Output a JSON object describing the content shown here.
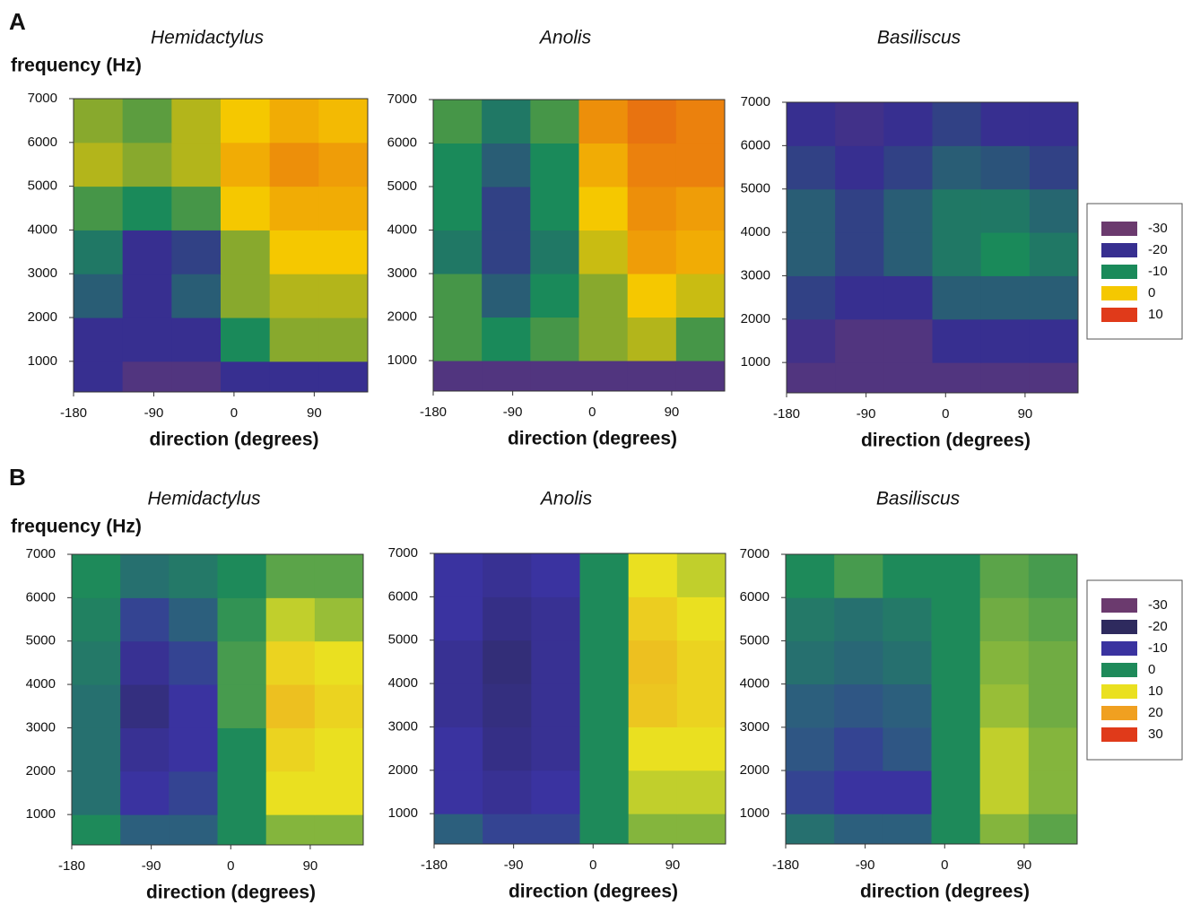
{
  "chart_data": [
    {
      "type": "heatmap",
      "panel_label": "A",
      "title": "Hemidactylus",
      "ylabel": "frequency  (Hz)",
      "xlabel": "direction  (degrees)",
      "xlim": [
        -180,
        150
      ],
      "ylim": [
        300,
        7000
      ],
      "xticks": [
        -180,
        -90,
        0,
        90
      ],
      "yticks": [
        1000,
        2000,
        3000,
        4000,
        5000,
        6000,
        7000
      ],
      "x_bins": [
        -180,
        -125,
        -70,
        -15,
        40,
        95,
        150
      ],
      "y_bins": [
        300,
        1000,
        2000,
        3000,
        4000,
        5000,
        6000,
        7000
      ],
      "values": [
        [
          -20,
          -25,
          -25,
          -20,
          -20,
          -20
        ],
        [
          -20,
          -20,
          -20,
          -10,
          -5,
          -5
        ],
        [
          -15,
          -20,
          -15,
          -5,
          -3,
          -3
        ],
        [
          -12,
          -20,
          -18,
          -5,
          0,
          0
        ],
        [
          -8,
          -10,
          -8,
          0,
          2,
          2
        ],
        [
          -3,
          -5,
          -3,
          2,
          4,
          3
        ],
        [
          -5,
          -7,
          -3,
          0,
          2,
          1
        ]
      ]
    },
    {
      "type": "heatmap",
      "title": "Anolis",
      "xlabel": "direction  (degrees)",
      "xlim": [
        -180,
        150
      ],
      "ylim": [
        300,
        7000
      ],
      "xticks": [
        -180,
        -90,
        0,
        90
      ],
      "yticks": [
        1000,
        2000,
        3000,
        4000,
        5000,
        6000,
        7000
      ],
      "x_bins": [
        -180,
        -125,
        -70,
        -15,
        40,
        95,
        150
      ],
      "y_bins": [
        300,
        1000,
        2000,
        3000,
        4000,
        5000,
        6000,
        7000
      ],
      "values": [
        [
          -25,
          -25,
          -25,
          -25,
          -25,
          -25
        ],
        [
          -8,
          -10,
          -8,
          -5,
          -3,
          -8
        ],
        [
          -8,
          -15,
          -10,
          -5,
          0,
          -2
        ],
        [
          -12,
          -18,
          -12,
          -2,
          3,
          2
        ],
        [
          -10,
          -18,
          -10,
          0,
          4,
          3
        ],
        [
          -10,
          -15,
          -10,
          2,
          5,
          5
        ],
        [
          -8,
          -12,
          -8,
          4,
          6,
          5
        ]
      ]
    },
    {
      "type": "heatmap",
      "title": "Basiliscus",
      "xlabel": "direction  (degrees)",
      "xlim": [
        -180,
        150
      ],
      "ylim": [
        300,
        7000
      ],
      "xticks": [
        -180,
        -90,
        0,
        90
      ],
      "yticks": [
        1000,
        2000,
        3000,
        4000,
        5000,
        6000,
        7000
      ],
      "x_bins": [
        -180,
        -125,
        -70,
        -15,
        40,
        95,
        150
      ],
      "y_bins": [
        300,
        1000,
        2000,
        3000,
        4000,
        5000,
        6000,
        7000
      ],
      "values": [
        [
          -25,
          -25,
          -25,
          -25,
          -25,
          -25
        ],
        [
          -22,
          -25,
          -25,
          -20,
          -20,
          -20
        ],
        [
          -18,
          -20,
          -20,
          -15,
          -15,
          -15
        ],
        [
          -15,
          -18,
          -15,
          -12,
          -10,
          -12
        ],
        [
          -15,
          -18,
          -15,
          -12,
          -12,
          -14
        ],
        [
          -18,
          -20,
          -18,
          -15,
          -16,
          -18
        ],
        [
          -20,
          -22,
          -20,
          -18,
          -20,
          -20
        ]
      ],
      "legend": {
        "levels": [
          -30,
          -20,
          -10,
          0,
          10
        ],
        "colors": [
          "#6b3a6e",
          "#372f90",
          "#1a8a5a",
          "#f5c800",
          "#e03a1a"
        ]
      }
    },
    {
      "type": "heatmap",
      "panel_label": "B",
      "title": "Hemidactylus",
      "ylabel": "frequency  (Hz)",
      "xlabel": "direction  (degrees)",
      "xlim": [
        -180,
        150
      ],
      "ylim": [
        300,
        7000
      ],
      "xticks": [
        -180,
        -90,
        0,
        90
      ],
      "yticks": [
        1000,
        2000,
        3000,
        4000,
        5000,
        6000,
        7000
      ],
      "x_bins": [
        -180,
        -125,
        -70,
        -15,
        40,
        95,
        150
      ],
      "y_bins": [
        300,
        1000,
        2000,
        3000,
        4000,
        5000,
        6000,
        7000
      ],
      "values": [
        [
          0,
          -5,
          -5,
          0,
          5,
          5
        ],
        [
          -3,
          -10,
          -8,
          0,
          10,
          10
        ],
        [
          -3,
          -12,
          -10,
          0,
          12,
          10
        ],
        [
          -3,
          -15,
          -10,
          2,
          15,
          12
        ],
        [
          -2,
          -12,
          -8,
          2,
          12,
          10
        ],
        [
          -1,
          -8,
          -5,
          1,
          8,
          6
        ],
        [
          0,
          -3,
          -2,
          0,
          3,
          3
        ]
      ]
    },
    {
      "type": "heatmap",
      "title": "Anolis",
      "xlabel": "direction  (degrees)",
      "xlim": [
        -180,
        150
      ],
      "ylim": [
        300,
        7000
      ],
      "xticks": [
        -180,
        -90,
        0,
        90
      ],
      "yticks": [
        1000,
        2000,
        3000,
        4000,
        5000,
        6000,
        7000
      ],
      "x_bins": [
        -180,
        -125,
        -70,
        -15,
        40,
        95,
        150
      ],
      "y_bins": [
        300,
        1000,
        2000,
        3000,
        4000,
        5000,
        6000,
        7000
      ],
      "values": [
        [
          -5,
          -8,
          -8,
          0,
          5,
          5
        ],
        [
          -10,
          -12,
          -10,
          0,
          8,
          8
        ],
        [
          -10,
          -14,
          -12,
          0,
          10,
          10
        ],
        [
          -12,
          -15,
          -12,
          0,
          14,
          12
        ],
        [
          -12,
          -16,
          -12,
          0,
          15,
          12
        ],
        [
          -10,
          -14,
          -12,
          0,
          13,
          10
        ],
        [
          -10,
          -12,
          -10,
          0,
          10,
          8
        ]
      ]
    },
    {
      "type": "heatmap",
      "title": "Basiliscus",
      "xlabel": "direction  (degrees)",
      "xlim": [
        -180,
        150
      ],
      "ylim": [
        300,
        7000
      ],
      "xticks": [
        -180,
        -90,
        0,
        90
      ],
      "yticks": [
        1000,
        2000,
        3000,
        4000,
        5000,
        6000,
        7000
      ],
      "x_bins": [
        -180,
        -125,
        -70,
        -15,
        40,
        95,
        150
      ],
      "y_bins": [
        300,
        1000,
        2000,
        3000,
        4000,
        5000,
        6000,
        7000
      ],
      "values": [
        [
          -3,
          -5,
          -5,
          0,
          5,
          3
        ],
        [
          -8,
          -10,
          -10,
          0,
          8,
          5
        ],
        [
          -6,
          -8,
          -6,
          0,
          8,
          5
        ],
        [
          -5,
          -6,
          -5,
          0,
          6,
          4
        ],
        [
          -3,
          -4,
          -3,
          0,
          5,
          4
        ],
        [
          -2,
          -3,
          -2,
          0,
          4,
          3
        ],
        [
          0,
          2,
          0,
          0,
          3,
          2
        ]
      ],
      "legend": {
        "levels": [
          -30,
          -20,
          -10,
          0,
          10,
          20,
          30
        ],
        "colors": [
          "#6b3a6e",
          "#2e2a5e",
          "#3a33a0",
          "#1e8a5a",
          "#eae020",
          "#f0a020",
          "#e03a1a"
        ]
      }
    }
  ]
}
